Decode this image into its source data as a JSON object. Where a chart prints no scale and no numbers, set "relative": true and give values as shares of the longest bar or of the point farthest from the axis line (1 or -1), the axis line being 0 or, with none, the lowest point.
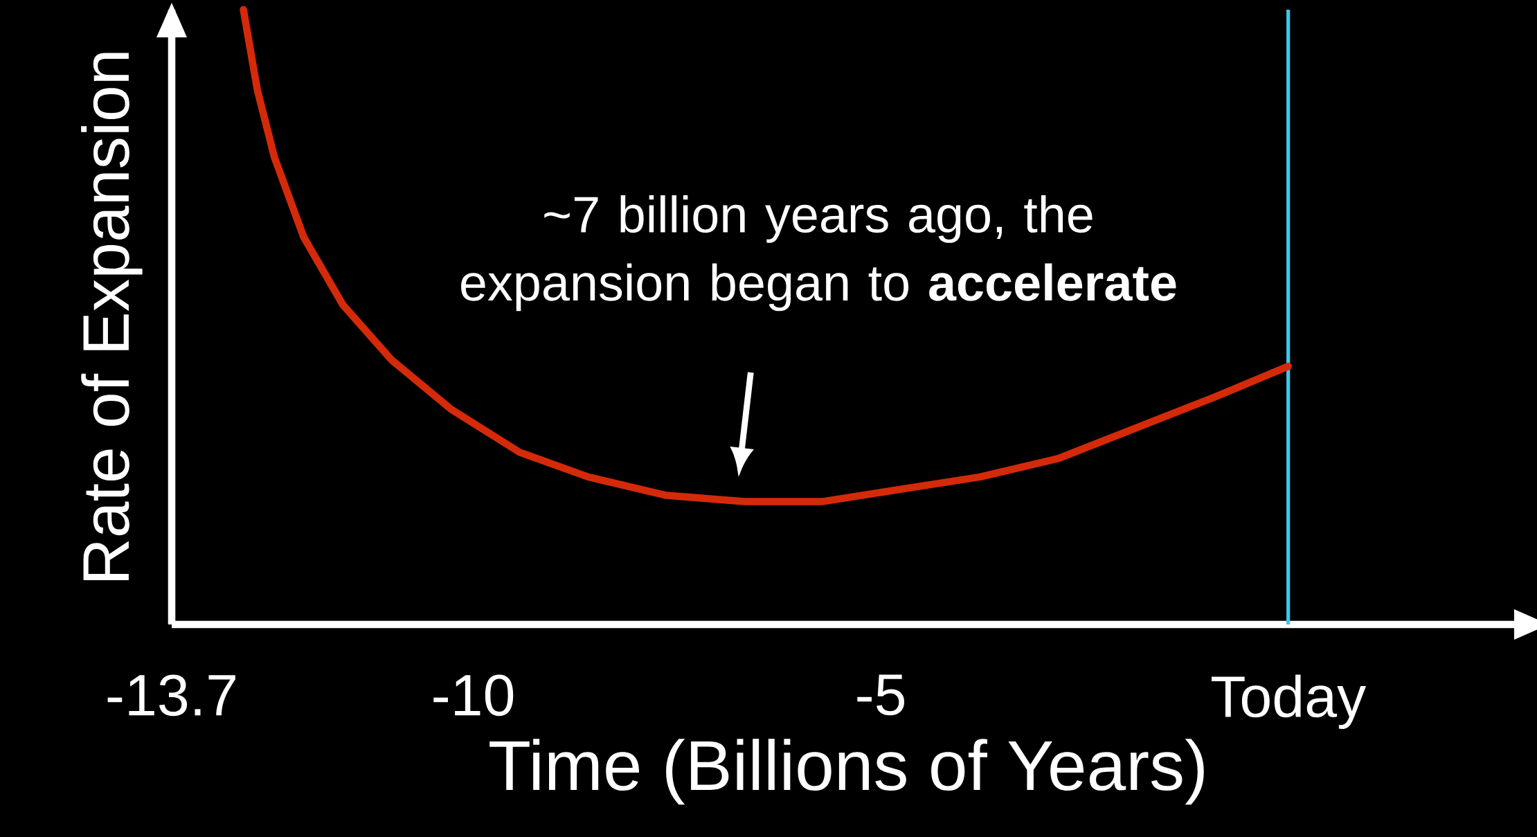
{
  "chart_data": {
    "type": "line",
    "relative": true,
    "xlabel": "Time (Billions of Years)",
    "ylabel": "Rate of Expansion",
    "xlim": [
      -13.7,
      2.9
    ],
    "xticks": [
      -13.7,
      -10,
      -5,
      {
        "value": 0,
        "label": "Today"
      }
    ],
    "series": [
      {
        "color": "#d42a0a",
        "x": [
          -12.82,
          -12.65,
          -12.44,
          -12.08,
          -11.6,
          -11.0,
          -10.27,
          -9.43,
          -8.59,
          -7.63,
          -6.67,
          -5.71,
          -4.75,
          -3.78,
          -2.82,
          -1.86,
          -0.9,
          0
        ],
        "values": [
          1,
          0.87,
          0.76,
          0.63,
          0.52,
          0.43,
          0.35,
          0.28,
          0.24,
          0.21,
          0.2,
          0.2,
          0.22,
          0.24,
          0.27,
          0.32,
          0.37,
          0.42
        ]
      }
    ],
    "ref_lines": [
      {
        "axis": "x",
        "value": 0,
        "color": "#3ec6e8"
      }
    ],
    "annotations": [
      "~7 billion years ago, the expansion began to **accelerate**"
    ]
  }
}
